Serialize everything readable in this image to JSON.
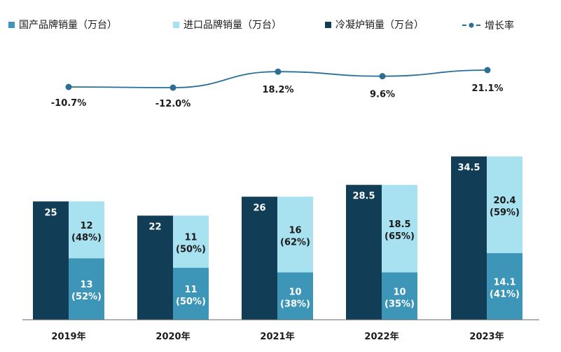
{
  "chart_data": {
    "type": "bar",
    "stacked": true,
    "categories": [
      "2019年",
      "2020年",
      "2021年",
      "2022年",
      "2023年"
    ],
    "series": [
      {
        "name": "国产品牌销量（万台）",
        "values": [
          13,
          11,
          10,
          10,
          14.1
        ],
        "labels": [
          "13",
          "11",
          "10",
          "10",
          "14.1"
        ],
        "shares": [
          "(52%)",
          "(50%)",
          "(38%)",
          "(35%)",
          "(41%)"
        ],
        "color": "#3d96b8",
        "stack": "brand"
      },
      {
        "name": "进口品牌销量（万台）",
        "values": [
          12,
          11,
          16,
          18.5,
          20.4
        ],
        "labels": [
          "12",
          "11",
          "16",
          "18.5",
          "20.4"
        ],
        "shares": [
          "(48%)",
          "(50%)",
          "(62%)",
          "(65%)",
          "(59%)"
        ],
        "color": "#a8e1ef",
        "stack": "brand"
      },
      {
        "name": "冷凝炉销量（万台）",
        "values": [
          25,
          22,
          26,
          28.5,
          34.5
        ],
        "labels": [
          "25",
          "22",
          "26",
          "28.5",
          "34.5"
        ],
        "color": "#123d56",
        "stack": "total"
      }
    ],
    "line": {
      "name": "增长率",
      "values": [
        -10.7,
        -12.0,
        18.2,
        9.6,
        21.1
      ],
      "labels": [
        "-10.7%",
        "-12.0%",
        "18.2%",
        "9.6%",
        "21.1%"
      ],
      "color": "#2b6f95"
    },
    "grid": false,
    "legend_position": "top"
  }
}
